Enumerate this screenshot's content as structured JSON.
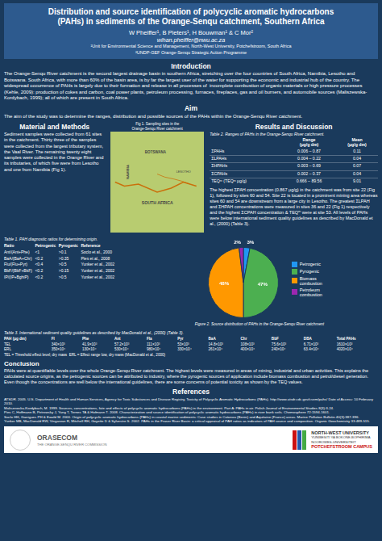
{
  "chart_data": {
    "type": "pie",
    "title": "Figure 2. Source distribution of PAHs in the Orange-Senqu River catchment",
    "categories": [
      "Petrogenic",
      "Pyrogenic",
      "Biomass\ncombustion",
      "Petroleum\ncombustion"
    ],
    "values": [
      3,
      47,
      48,
      2
    ],
    "value_labels": [
      "3%",
      "47%",
      "48%",
      "2%"
    ],
    "colors": [
      "#2196F3",
      "#4CAF50",
      "#FF9800",
      "#9C27B0"
    ],
    "data_labels": true,
    "legend": "right",
    "annotations": {
      "header": {
        "title": [
          "Distribution and source identification of polycyclic aromatic hydrocarbons",
          "(PAHs) in sediments of the Orange-Senqu catchment, Southern Africa"
        ],
        "authors": "W Pheiffer¹, B Pieters¹, H Bouwman¹ & C Mor²",
        "email": "wihan.pheiffer@nwu.ac.za",
        "affiliations": [
          "¹Unit for Environmental Science and Management, North-West University, Potchefstroom, South Africa",
          "²UNDP-GEF Orange-Senqu Strategic Action Programme"
        ]
      },
      "introduction": {
        "heading": "Introduction",
        "text": "The Orange-Senqu River catchment is the second largest drainage basin in southern Africa, stretching over the four countries of South Africa, Namibia, Lesotho and Botswana. South Africa, with more than 60% of the basin area, is by far the largest user of the water for supporting the economic and industrial hub of the country. The widespread occurrence of PAHs is largely due to their formation and release in all processes of  incomplete combustion of organic materials or high pressure processes (Kehle, 2009): production of cokes and carbon, coal power plants, petroleum processing, furnaces, fireplaces, gas and oil burners, and automobile sources (Maliszewska-Kordybach, 1999); all of which are present in South Africa."
      },
      "aim": {
        "heading": "Aim",
        "text": "The aim of the study was to determine the ranges, distribution and possible sources of the PAHs within the Orange-Senqu River catchment."
      },
      "methods": {
        "heading": "Material and Methods",
        "text": "Sediment samples were collected from 61 sites in the catchment. Thirty three of the samples were collected from the largest tributary system, the Vaal River. The remaining twenty eight samples were collected in the Orange River and its tributaries, of which five were from Lesotho and one from Namibia (Fig 1)."
      },
      "map": {
        "title": "Fig 1. Sampling sites in the\nOrange-Senqu River catchment",
        "labels": [
          "BOTSWANA",
          "NAMIBIA",
          "SOUTH AFRICA",
          "LESOTHO"
        ]
      },
      "results": {
        "heading": "Results and Discussion",
        "table_title": "Table 2. Ranges of PAHs in the Orange-Senqu River catchment.",
        "table_headers": [
          "Range\n(μg/g dm)",
          "Mean\n(μg/g dm)"
        ],
        "table_rows": [
          [
            "ΣPAHs",
            "0.006 – 0.87",
            "0.11"
          ],
          [
            "ΣLPAHs",
            "0.004 – 0.22",
            "0.04"
          ],
          [
            "ΣHPAHs",
            "0.003 – 0.69",
            "0.07"
          ],
          [
            "ΣCPAHs",
            "0.002 – 0.37",
            "0.04"
          ],
          [
            "TEQᵐ (TEQᵐ μg/g)",
            "0.666 – 89.56",
            "9.01"
          ]
        ],
        "text": "The highest ΣPAH concentration (0.867 μg/g) in the catchment was from site 22 (Fig 1), followed by sites 60 and 54. Site 22 is located in a prominent mining area whereas sites 60 and 54 are downstream from a large city in Lesotho. The greatest ΣLPAH and ΣHPAH concentrations were measured in sites 36 and 22 (Fig 1) respectively and the highest ΣCPAH concentration & TEQᵐ were at site 53. All levels of PAHs were below international sediment quality guidelines as described by MacDonald et al., (2000) (Table 3)."
      },
      "diagnostic_table": {
        "title": "Table 1. PAH diagnostic ratios for determining origin.",
        "headers": [
          "Ratio",
          "Petrogenic",
          "Pyrogenic",
          "Reference"
        ],
        "rows": [
          [
            "Ant/(Ant+Phe)",
            "<1",
            ">0.1",
            "Soclo et al., 2000"
          ],
          [
            "BaA/(BaA+Chr)",
            "<0.2",
            ">0.35",
            "Pies et al., 2008"
          ],
          [
            "Flu/(Flu+Pyr)",
            "<0.4",
            ">0.5",
            "Yunker et al., 2002"
          ],
          [
            "BbF/(BbF+BkF)",
            "<0.2",
            ">0.15",
            "Yunker et al., 2002"
          ],
          [
            "IP/(IP+BghiP)",
            "<0.2",
            ">0.5",
            "Yunker et al., 2002"
          ]
        ]
      },
      "guideline_table": {
        "title": "Table 3. International sediment quality guidelines as described by MacDonald et al., (2000) (Table 3).",
        "headers": [
          "PAH (μg dm)",
          "Fl",
          "Phe",
          "Ant",
          "Fla",
          "Pyr",
          "BaA",
          "Chr",
          "BbF",
          "DBA",
          "Total PAHs"
        ],
        "rows": [
          [
            "TEL",
            "340×10³",
            "41.9×10³",
            "57.2×10³",
            "111×10³",
            "53×10³",
            "14.8×10³",
            "108×10³",
            "75.6×10³",
            "6.71×10³",
            "1610×10³"
          ],
          [
            "ERL",
            "350×10⁴",
            "130×10⁴",
            "530×10⁴",
            "980×10⁴",
            "330×10⁴",
            "261×10⁴",
            "400×10⁴",
            "240×10⁴",
            "63.4×10⁴",
            "4020×10⁴"
          ]
        ],
        "note": "TEL = Threshold effect level; dry mass  ERL = Effect range low, dry mass (MacDonald et al., 2000)"
      },
      "conclusion": {
        "heading": "Conclusion",
        "text": "PAHs were at quantifiable levels over the whole Orange-Senqu River catchment. The highest levels were measured in areas of mining, industrial and urban activities. This explains the calculated source origins, as the petrogenic sources can be attributed to industry, where the pyrogenic sources of application include biomass combustion and petrol/diesel generation. Even though the concentrations are well below the international guidelines, there are some concerns of potential toxicity as shown by the TEQ values."
      },
      "references": {
        "heading": "References",
        "text": "ATSDR. 2005. U.S. Department of Health and Human Services, Agency for Toxic Substances and Disease Registry, Toxicity of Polycyclic Aromatic Hydrocarbons (PAHs). http://www.atsdr.cdc.gov/csem/pahs/ Date of Access: 10 February 2010.\nMaliszewska-Kordybach, M. 1999. Sources, concentrations, fate and effects of polycyclic aromatic hydrocarbons (PAHs) in the environment. Part A: PAHs in air. Polish Journal of Environmental Studies 8(3):3-24.\nPies C, Hoffmann B, Petrowsky J, Yang T, Ternes TA & Hofmann T. 2008. Characterization and source identification of polycyclic aromatic hydrocarbons (PAHs) in river bank soils. Chemosphere 72:1594-1601.\nSoclo HH, Garrigues PH & Ewald M. 2000. Origin of polycyclic aromatic hydrocarbons (PAHs) in coastal marine sediments: Case studies in Cotonou (Benin) and Aquitaine (France) areas. Marine Pollution Bulletin 40(3):387-396.\nYunker MB, MacDonald RW, Vingarzan R, Mitchell RH, Goyette D & Sylvestre S. 2002. PAHs in the Fraser River Basin: a critical appraisal of PAH ratios as indicators of PAH source and composition. Organic Geochemistry 33:489-515."
      },
      "logos": {
        "orasecom": [
          "ORASECOM",
          "THE ORANGE-SENQU RIVER COMMISSION"
        ],
        "nwu": [
          "NORTH-WEST UNIVERSITY",
          "YUNIBESITI YA BOKONE-BOPHIRIMA",
          "NOOROWES-UNIVERSITEIT",
          "POTCHEFSTROOM CAMPUS"
        ]
      }
    }
  }
}
